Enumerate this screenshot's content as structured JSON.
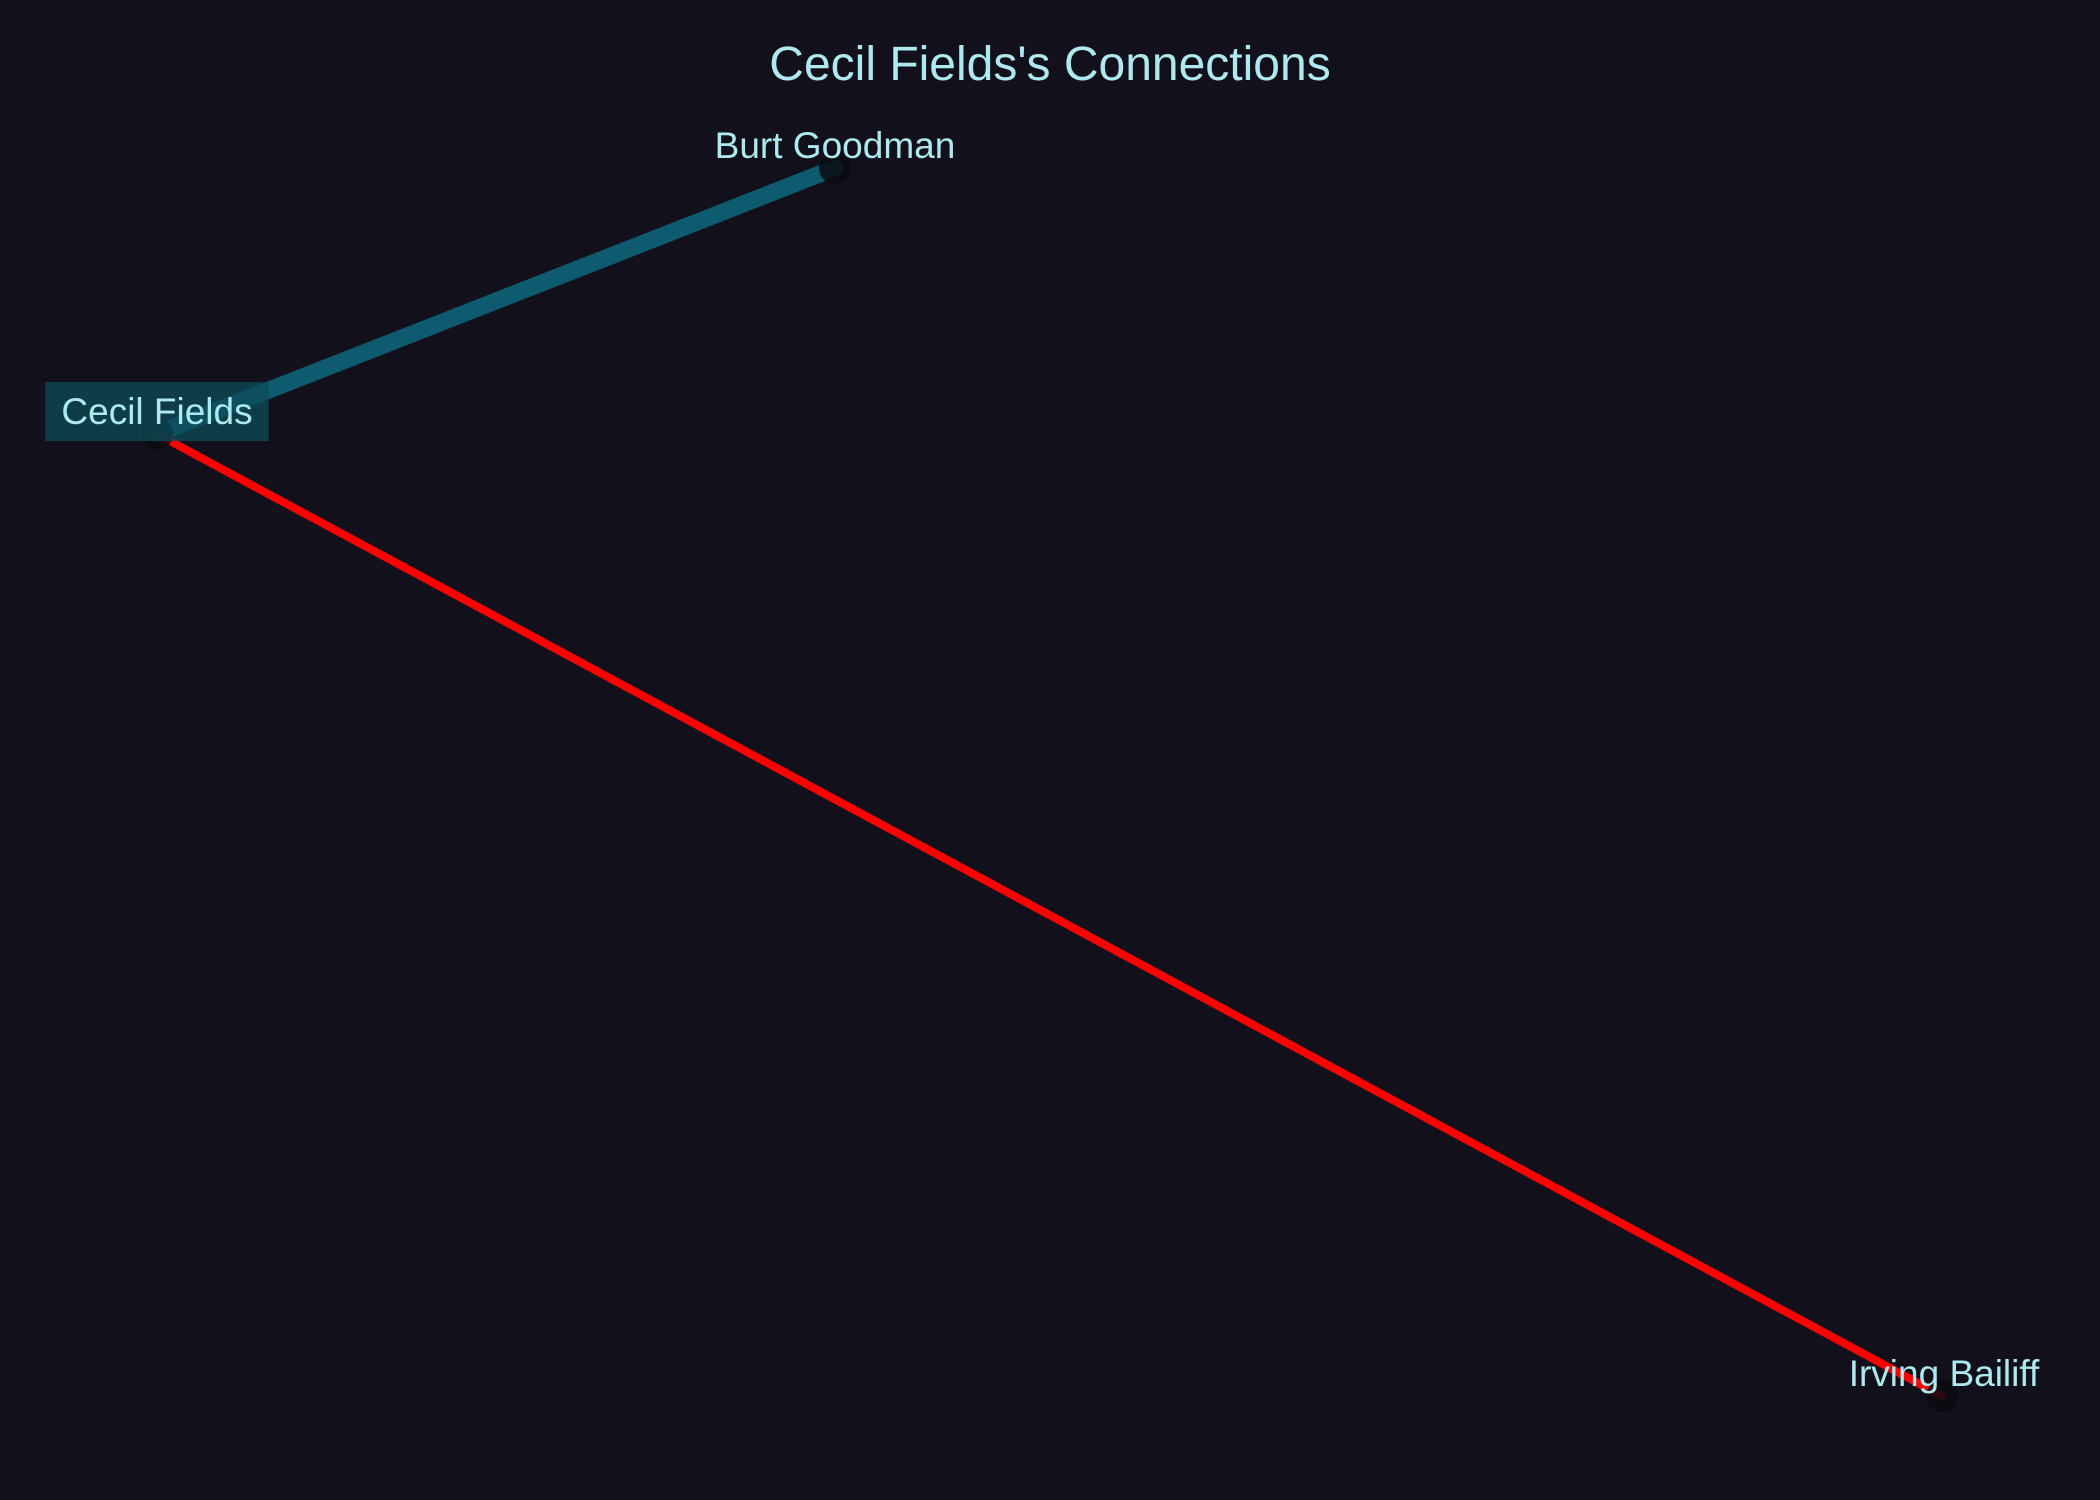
{
  "title": "Cecil Fields's Connections",
  "colors": {
    "background": "#12101b",
    "text": "#aee9ef",
    "highlight": "#0e4c5a",
    "edge_teal": "#0e5a6e",
    "edge_red": "#ff0000",
    "node_fill": "#0a0a10"
  },
  "nodes": [
    {
      "id": "cecil",
      "label": "Cecil Fields",
      "highlighted": true
    },
    {
      "id": "burt",
      "label": "Burt Goodman",
      "highlighted": false
    },
    {
      "id": "irving",
      "label": "Irving Bailiff",
      "highlighted": false
    }
  ],
  "edges": [
    {
      "from": "cecil",
      "to": "burt",
      "color": "#0e5a6e"
    },
    {
      "from": "cecil",
      "to": "irving",
      "color": "#ff0000"
    }
  ]
}
